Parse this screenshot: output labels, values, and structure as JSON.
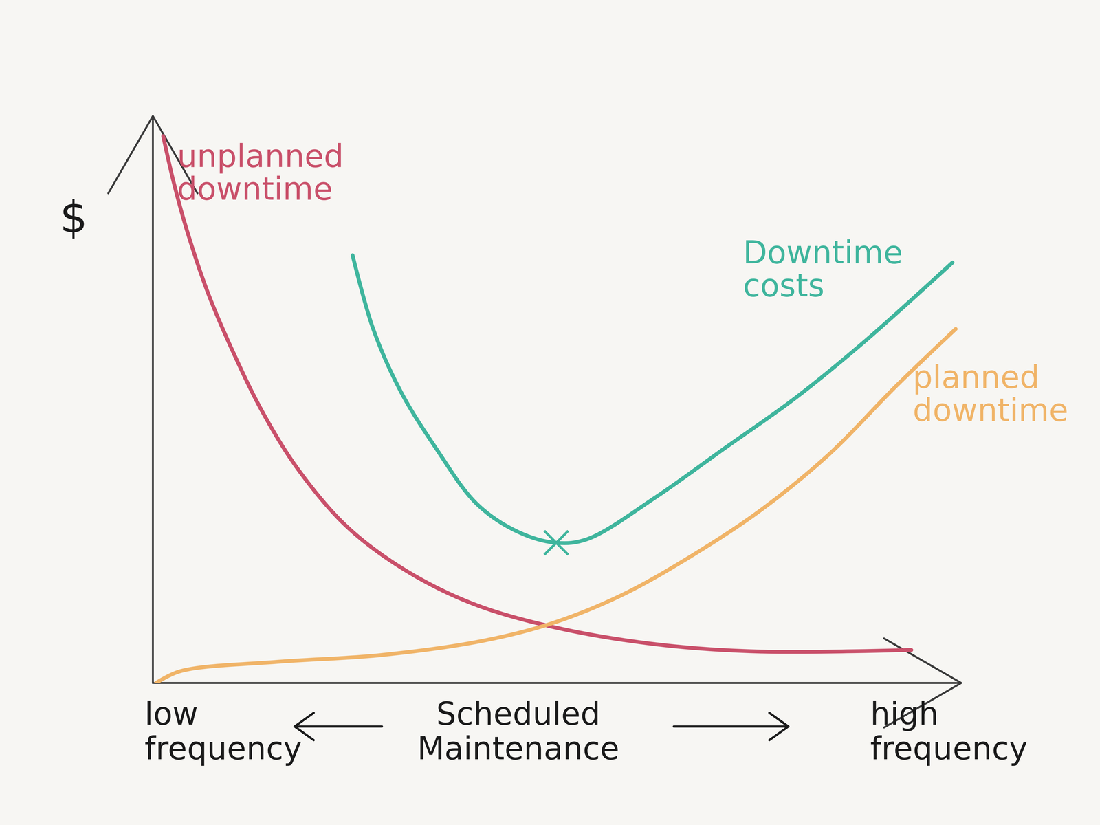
{
  "chart_data": {
    "type": "line",
    "x_label": "Scheduled Maintenance",
    "y_label": "$",
    "x_low_label": "low frequency",
    "x_high_label": "high frequency",
    "xlim": [
      0,
      10.2
    ],
    "ylim": [
      0,
      11
    ],
    "tick_labels": false,
    "series": [
      {
        "name": "unplanned downtime",
        "color": "#c9506a",
        "x": [
          0.13,
          0.26,
          0.43,
          0.7,
          1.04,
          1.39,
          1.83,
          2.43,
          3.13,
          4.0,
          5.04,
          6.35,
          7.65,
          9.57
        ],
        "values": [
          10.61,
          9.73,
          8.78,
          7.55,
          6.33,
          5.24,
          4.15,
          3.06,
          2.24,
          1.56,
          1.09,
          0.75,
          0.61,
          0.64
        ]
      },
      {
        "name": "Downtime costs",
        "color": "#3fb59d",
        "x": [
          2.52,
          2.78,
          3.13,
          3.57,
          4.09,
          4.61,
          5.09,
          5.48,
          6.35,
          7.22,
          8.09,
          8.96,
          10.09
        ],
        "values": [
          8.3,
          6.87,
          5.65,
          4.56,
          3.47,
          2.93,
          2.72,
          2.79,
          3.61,
          4.56,
          5.51,
          6.6,
          8.16
        ]
      },
      {
        "name": "planned downtime",
        "color": "#f0b468",
        "x": [
          0.04,
          0.35,
          1.57,
          2.87,
          4.17,
          5.04,
          5.91,
          6.78,
          7.65,
          8.52,
          9.39,
          10.13
        ],
        "values": [
          0,
          0.23,
          0.41,
          0.54,
          0.82,
          1.16,
          1.7,
          2.45,
          3.33,
          4.42,
          5.78,
          6.87
        ]
      }
    ],
    "annotations": [
      {
        "x": 5.09,
        "y": 2.72,
        "marker": "x",
        "color": "#3fb59d"
      }
    ]
  }
}
